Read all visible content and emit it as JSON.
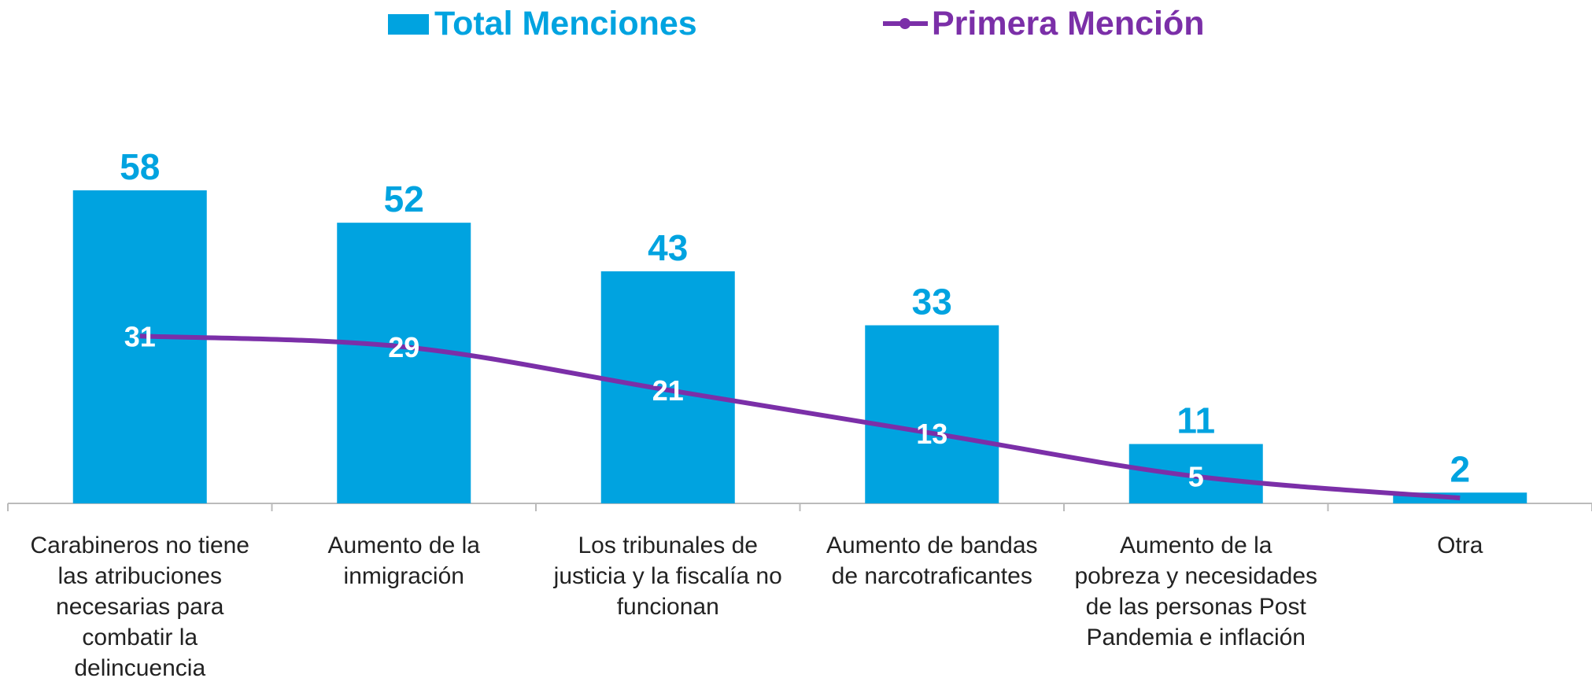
{
  "chart_data": {
    "type": "bar",
    "categories": [
      "Carabineros no tiene las atribuciones necesarias para combatir la delincuencia",
      "Aumento de la inmigración",
      "Los tribunales de justicia y la fiscalía no funcionan",
      "Aumento de bandas de narcotraficantes",
      "Aumento de la pobreza y necesidades de las personas Post Pandemia e inflación",
      "Otra"
    ],
    "series": [
      {
        "name": "Total Menciones",
        "type": "bar",
        "color": "#00a3e0",
        "values": [
          58,
          52,
          43,
          33,
          11,
          2
        ]
      },
      {
        "name": "Primera Mención",
        "type": "line",
        "color": "#7b2fa8",
        "values": [
          31,
          29,
          21,
          13,
          5,
          1
        ],
        "value_labels": [
          "31",
          "29",
          "21",
          "13",
          "5",
          null
        ]
      }
    ]
  }
}
